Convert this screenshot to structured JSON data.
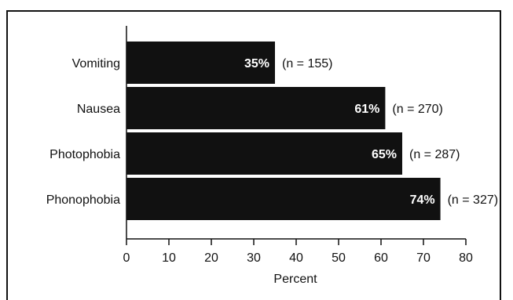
{
  "chart_data": {
    "type": "bar",
    "orientation": "horizontal",
    "categories": [
      "Vomiting",
      "Nausea",
      "Photophobia",
      "Phonophobia"
    ],
    "values": [
      35,
      61,
      65,
      74
    ],
    "value_labels": [
      "35%",
      "61%",
      "65%",
      "74%"
    ],
    "n_labels": [
      "(n = 155)",
      "(n = 270)",
      "(n = 287)",
      "(n = 327)"
    ],
    "xlabel": "Percent",
    "xlim": [
      0,
      80
    ],
    "xticks": [
      0,
      10,
      20,
      30,
      40,
      50,
      60,
      70,
      80
    ],
    "grid": false,
    "bar_color": "#111111"
  }
}
